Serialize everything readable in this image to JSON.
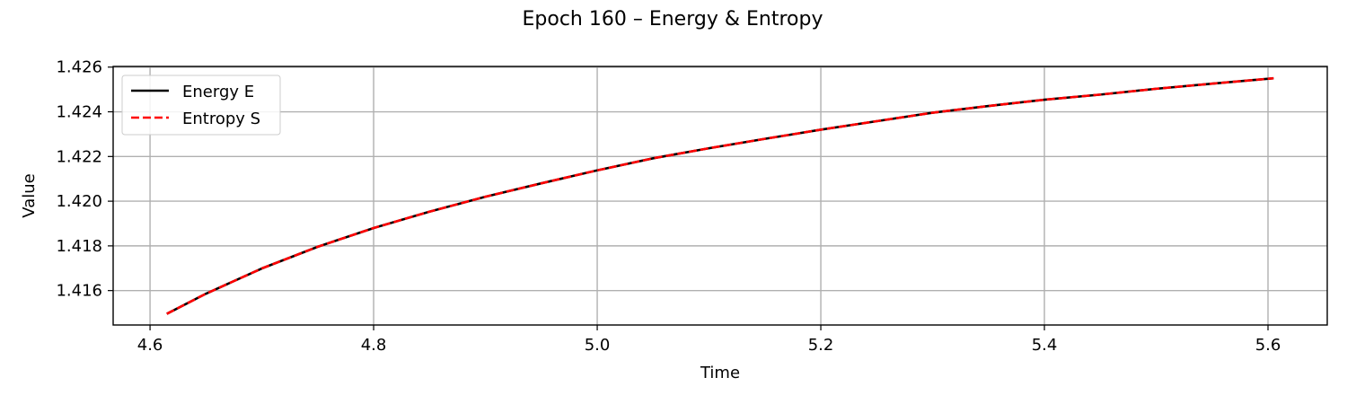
{
  "chart_data": {
    "type": "line",
    "title": "Epoch 160 – Energy & Entropy",
    "xlabel": "Time",
    "ylabel": "Value",
    "xlim": [
      4.567,
      5.653
    ],
    "ylim": [
      1.41446,
      1.42603
    ],
    "xticks": [
      4.6,
      4.8,
      5.0,
      5.2,
      5.4,
      5.6
    ],
    "xtick_labels": [
      "4.6",
      "4.8",
      "5.0",
      "5.2",
      "5.4",
      "5.6"
    ],
    "yticks": [
      1.416,
      1.418,
      1.42,
      1.422,
      1.424,
      1.426
    ],
    "ytick_labels": [
      "1.416",
      "1.418",
      "1.420",
      "1.422",
      "1.424",
      "1.426"
    ],
    "grid": true,
    "legend": "top-left",
    "series": [
      {
        "name": "Energy E",
        "color": "#000000",
        "style": "solid",
        "x": [
          4.615,
          4.65,
          4.7,
          4.75,
          4.8,
          4.85,
          4.9,
          4.95,
          5.0,
          5.05,
          5.1,
          5.15,
          5.2,
          5.25,
          5.3,
          5.35,
          5.4,
          5.45,
          5.5,
          5.55,
          5.605
        ],
        "y": [
          1.41496,
          1.41586,
          1.41699,
          1.41796,
          1.4188,
          1.41953,
          1.4202,
          1.4208,
          1.42138,
          1.42192,
          1.42237,
          1.42279,
          1.4232,
          1.42358,
          1.42396,
          1.42426,
          1.42454,
          1.42477,
          1.42503,
          1.42526,
          1.4255
        ]
      },
      {
        "name": "Entropy S",
        "color": "#ff0000",
        "style": "dashed",
        "x": [
          4.615,
          4.65,
          4.7,
          4.75,
          4.8,
          4.85,
          4.9,
          4.95,
          5.0,
          5.05,
          5.1,
          5.15,
          5.2,
          5.25,
          5.3,
          5.35,
          5.4,
          5.45,
          5.5,
          5.55,
          5.605
        ],
        "y": [
          1.41496,
          1.41586,
          1.41699,
          1.41796,
          1.4188,
          1.41953,
          1.4202,
          1.4208,
          1.42138,
          1.42192,
          1.42237,
          1.42279,
          1.4232,
          1.42358,
          1.42396,
          1.42426,
          1.42454,
          1.42477,
          1.42503,
          1.42526,
          1.4255
        ]
      }
    ]
  }
}
